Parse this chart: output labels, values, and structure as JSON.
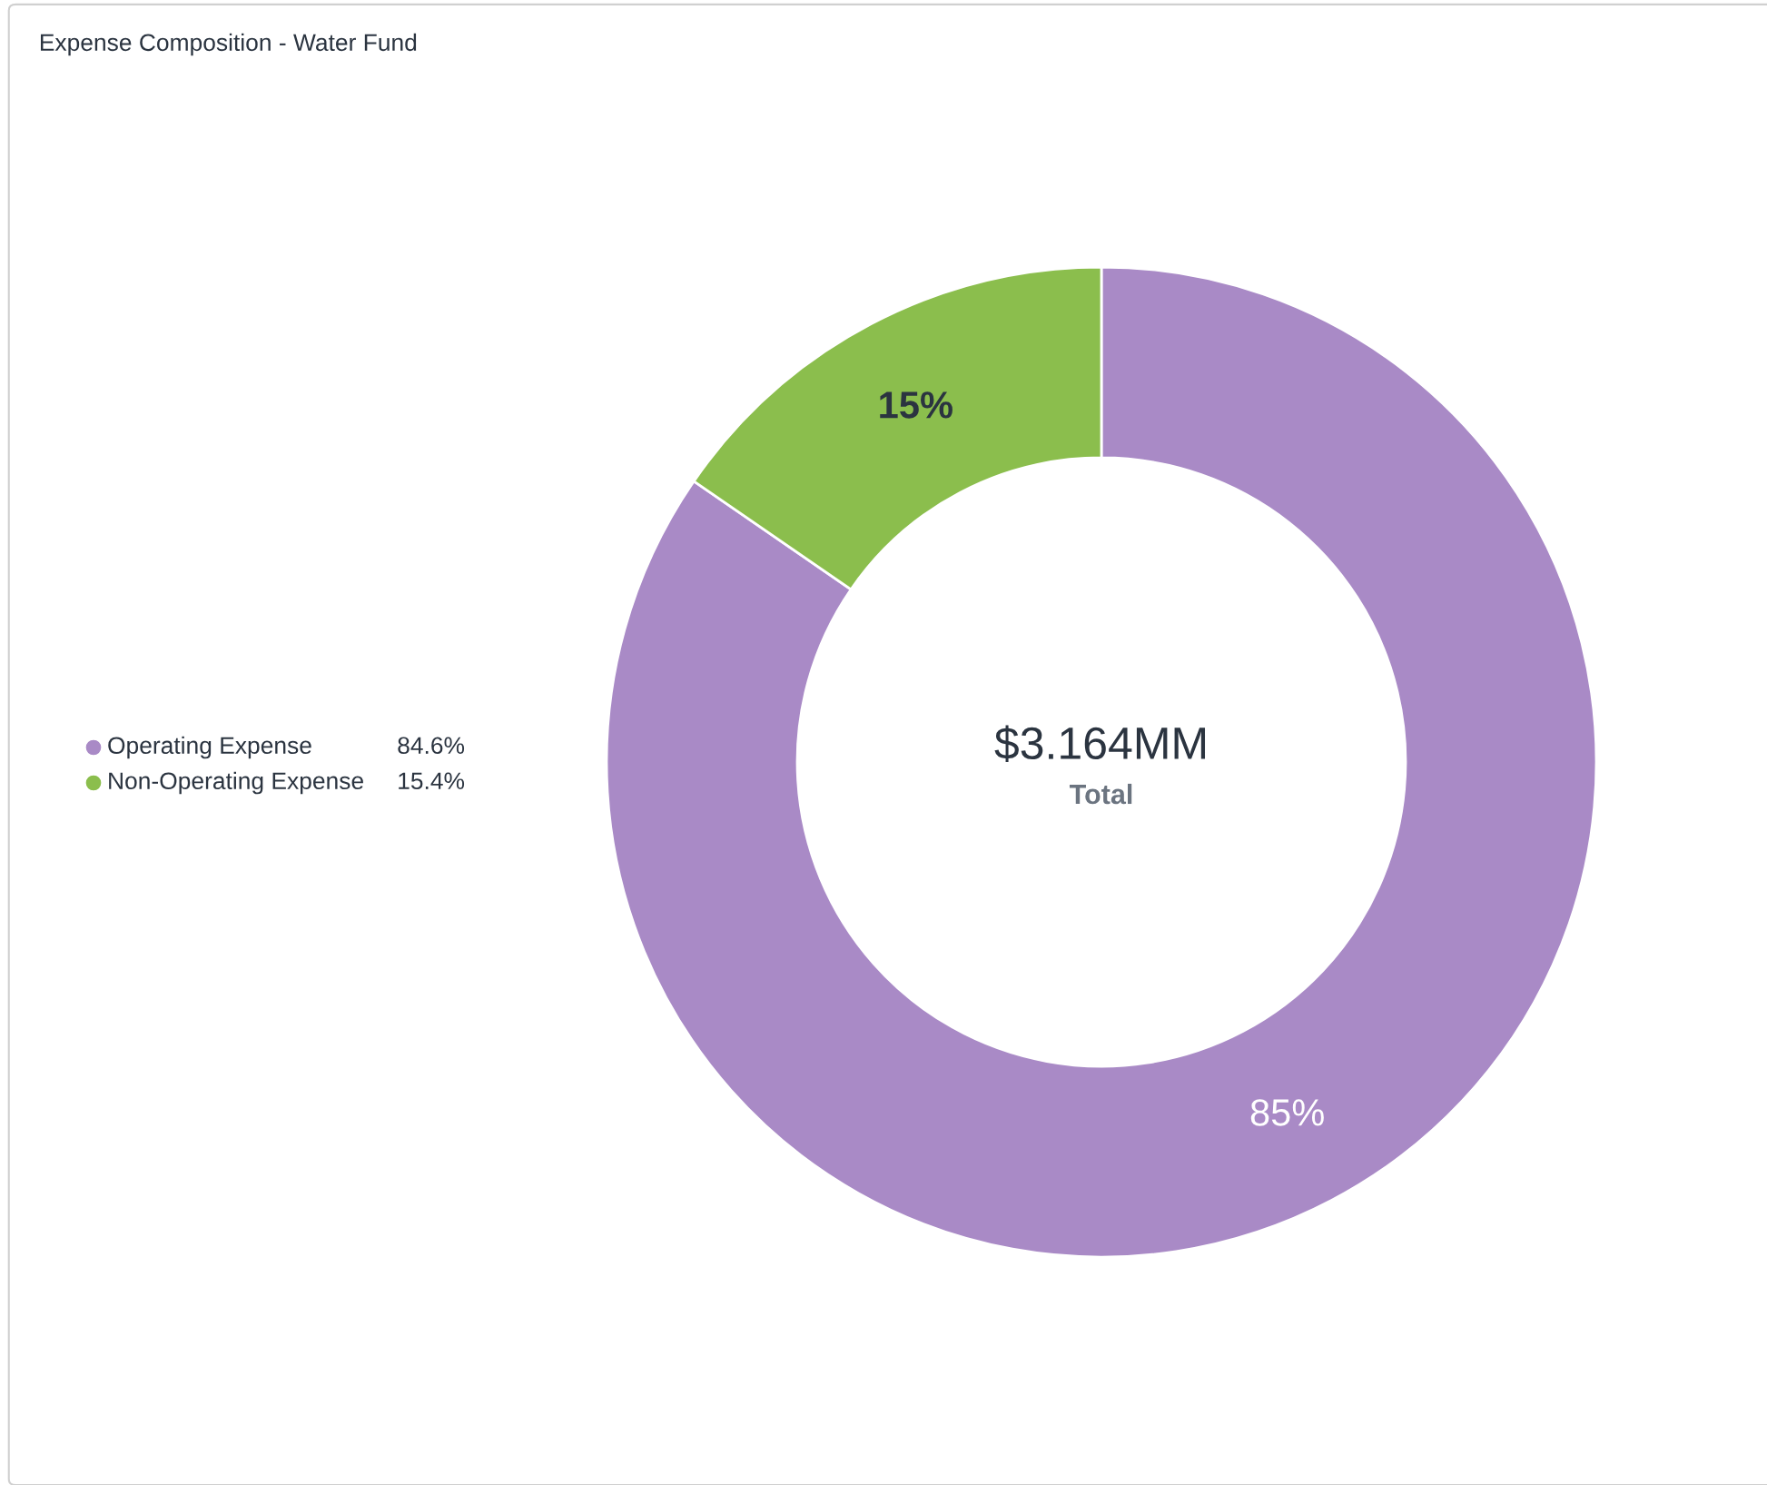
{
  "chart_data": {
    "type": "donut",
    "title": "Expense Composition - Water Fund",
    "categories": [
      "Operating Expense",
      "Non-Operating Expense"
    ],
    "values": [
      84.6,
      15.4
    ],
    "colors": [
      "#a98ac6",
      "#8bbe4d"
    ],
    "value_labels": [
      "85%",
      "15%"
    ],
    "legend": "left",
    "annotations": [
      "$3.164MM",
      "Total",
      "84.6%",
      "15.4%"
    ]
  }
}
